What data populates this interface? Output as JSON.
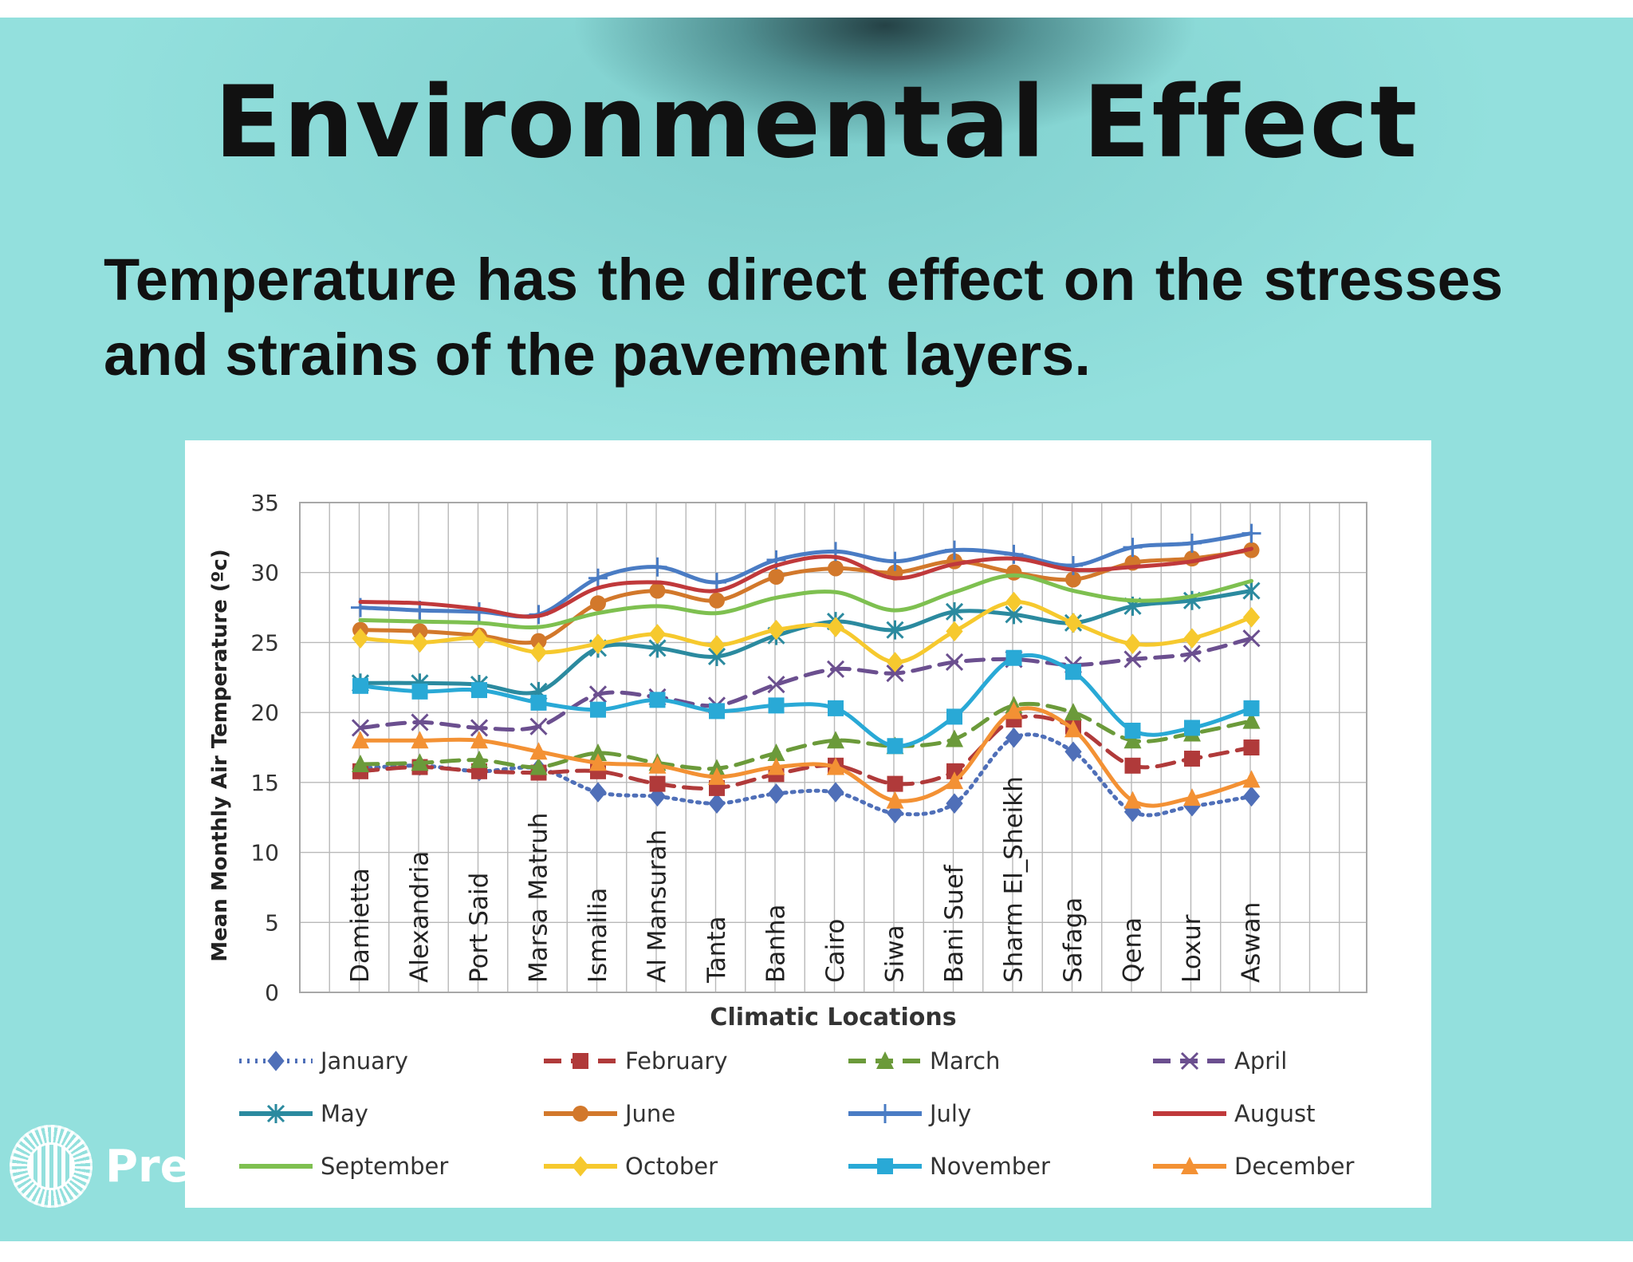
{
  "slide": {
    "title": "Environmental Effect",
    "body": "Temperature has the direct effect on the stresses and strains of the pavement layers."
  },
  "branding": {
    "logo_text": "Prezi"
  },
  "chart_data": {
    "type": "line",
    "xlabel": "Climatic Locations",
    "ylabel": "Mean Monthly Air Temperature (ºc)",
    "ylim": [
      0,
      35
    ],
    "yticks": [
      0,
      5,
      10,
      15,
      20,
      25,
      30,
      35
    ],
    "grid": true,
    "legend_position": "bottom",
    "categories": [
      "Damietta",
      "Alexandria",
      "Port Said",
      "Marsa Matruh",
      "Ismailia",
      "Al Mansurah",
      "Tanta",
      "Banha",
      "Cairo",
      "Siwa",
      "Bani Suef",
      "Sharm El_Sheikh",
      "Safaga",
      "Qena",
      "Loxur",
      "Aswan"
    ],
    "series": [
      {
        "name": "January",
        "color": "#4f6fb8",
        "dash": "dot",
        "marker": "diamond",
        "values": [
          16,
          16.2,
          15.8,
          16,
          14.3,
          14,
          13.5,
          14.2,
          14.3,
          12.8,
          13.5,
          18.2,
          17.2,
          12.9,
          13.3,
          14
        ]
      },
      {
        "name": "February",
        "color": "#b03a3a",
        "dash": "dash",
        "marker": "square",
        "values": [
          15.8,
          16.1,
          15.8,
          15.7,
          15.8,
          14.9,
          14.6,
          15.6,
          16.2,
          14.9,
          15.8,
          19.5,
          19,
          16.2,
          16.7,
          17.5
        ]
      },
      {
        "name": "March",
        "color": "#6b9a3a",
        "dash": "dash",
        "marker": "triangle",
        "values": [
          16.3,
          16.4,
          16.6,
          16.1,
          17.1,
          16.4,
          16,
          17.1,
          18,
          17.6,
          18.1,
          20.5,
          20,
          18,
          18.5,
          19.4
        ]
      },
      {
        "name": "April",
        "color": "#6b4f8f",
        "dash": "dash",
        "marker": "x",
        "values": [
          18.9,
          19.3,
          18.9,
          19,
          21.3,
          21.1,
          20.5,
          22,
          23.1,
          22.8,
          23.6,
          23.8,
          23.4,
          23.8,
          24.2,
          25.3
        ]
      },
      {
        "name": "May",
        "color": "#2b8a9f",
        "dash": "solid",
        "marker": "star",
        "values": [
          22.1,
          22.1,
          22,
          21.5,
          24.6,
          24.6,
          24,
          25.5,
          26.5,
          25.9,
          27.2,
          27,
          26.4,
          27.6,
          28,
          28.7
        ]
      },
      {
        "name": "June",
        "color": "#d2782b",
        "dash": "solid",
        "marker": "circle",
        "values": [
          25.9,
          25.8,
          25.5,
          25.1,
          27.8,
          28.7,
          28,
          29.7,
          30.3,
          30,
          30.8,
          30,
          29.5,
          30.7,
          31,
          31.6
        ]
      },
      {
        "name": "July",
        "color": "#4a7cc4",
        "dash": "solid",
        "marker": "plus",
        "values": [
          27.5,
          27.3,
          27.2,
          27,
          29.6,
          30.4,
          29.3,
          30.9,
          31.5,
          30.8,
          31.6,
          31.3,
          30.5,
          31.8,
          32.1,
          32.8
        ]
      },
      {
        "name": "August",
        "color": "#c0393b",
        "dash": "solid",
        "marker": "none",
        "values": [
          27.9,
          27.8,
          27.4,
          26.9,
          28.9,
          29.3,
          28.7,
          30.5,
          31.1,
          29.6,
          30.6,
          31,
          30.2,
          30.4,
          30.8,
          31.7
        ]
      },
      {
        "name": "September",
        "color": "#7ec050",
        "dash": "solid",
        "marker": "none",
        "values": [
          26.6,
          26.5,
          26.4,
          26.1,
          27.1,
          27.6,
          27.1,
          28.2,
          28.6,
          27.3,
          28.6,
          29.8,
          28.7,
          28,
          28.3,
          29.4
        ]
      },
      {
        "name": "October",
        "color": "#f6c92e",
        "dash": "solid",
        "marker": "diamond",
        "values": [
          25.3,
          25,
          25.3,
          24.3,
          24.9,
          25.6,
          24.8,
          25.9,
          26.1,
          23.6,
          25.8,
          27.9,
          26.4,
          24.9,
          25.3,
          26.8
        ]
      },
      {
        "name": "November",
        "color": "#29a9d6",
        "dash": "solid",
        "marker": "square",
        "values": [
          21.9,
          21.5,
          21.6,
          20.7,
          20.2,
          20.9,
          20.1,
          20.5,
          20.3,
          17.6,
          19.7,
          23.9,
          22.9,
          18.7,
          18.9,
          20.3
        ]
      },
      {
        "name": "December",
        "color": "#f39134",
        "dash": "solid",
        "marker": "triangle",
        "values": [
          18,
          18,
          18,
          17.2,
          16.4,
          16.2,
          15.4,
          16.1,
          16.1,
          13.7,
          15.1,
          20.1,
          18.8,
          13.7,
          13.9,
          15.2
        ]
      }
    ]
  }
}
